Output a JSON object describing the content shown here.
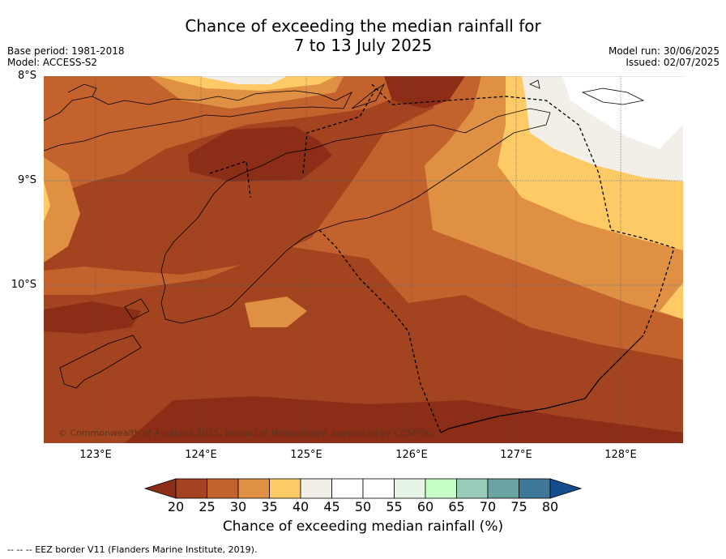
{
  "title_line1": "Chance of exceeding the median rainfall for",
  "title_line2": "7 to 13 July 2025",
  "base_period": "Base period: 1981-2018",
  "model": "Model: ACCESS-S2",
  "model_run": "Model run: 30/06/2025",
  "issued": "Issued: 02/07/2025",
  "lon_ticks": [
    "123°E",
    "124°E",
    "125°E",
    "126°E",
    "127°E",
    "128°E"
  ],
  "lat_ticks": [
    "8°S",
    "9°S",
    "10°S"
  ],
  "copyright": "© Commonwealth of Australia 2025, Bureau of Meteorology, supported by COSPPac",
  "legend": {
    "title": "Chance of exceeding median rainfall (%)",
    "labels": [
      "20",
      "25",
      "30",
      "35",
      "40",
      "45",
      "50",
      "55",
      "60",
      "65",
      "70",
      "75",
      "80"
    ],
    "colors": [
      "#8c2d18",
      "#a3431f",
      "#c4622e",
      "#df9043",
      "#fdca65",
      "#f2eee8",
      "#ffffff",
      "#ffffff",
      "#e6f5e6",
      "#c8ffc8",
      "#98ccb8",
      "#6ba3a3",
      "#3e7799",
      "#164d8f"
    ]
  },
  "footer": "--  --  -- EEZ border V11 (Flanders Marine Institute, 2019)."
}
